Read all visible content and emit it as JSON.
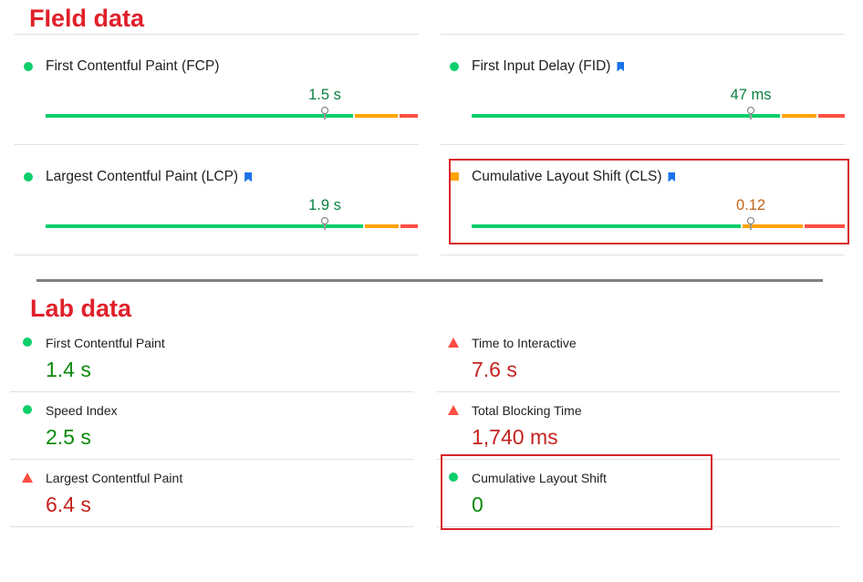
{
  "field_data": {
    "title": "FIeld data",
    "metrics": [
      {
        "label": "First Contentful Paint (FCP)",
        "value": "1.5 s",
        "status": "good",
        "bookmark": false
      },
      {
        "label": "First Input Delay (FID)",
        "value": "47 ms",
        "status": "good",
        "bookmark": true
      },
      {
        "label": "Largest Contentful Paint (LCP)",
        "value": "1.9 s",
        "status": "good",
        "bookmark": true
      },
      {
        "label": "Cumulative Layout Shift (CLS)",
        "value": "0.12",
        "status": "average",
        "bookmark": true
      }
    ]
  },
  "lab_data": {
    "title": "Lab data",
    "metrics": [
      {
        "label": "First Contentful Paint",
        "value": "1.4 s",
        "status": "good"
      },
      {
        "label": "Time to Interactive",
        "value": "7.6 s",
        "status": "poor"
      },
      {
        "label": "Speed Index",
        "value": "2.5 s",
        "status": "good"
      },
      {
        "label": "Total Blocking Time",
        "value": "1,740 ms",
        "status": "poor"
      },
      {
        "label": "Largest Contentful Paint",
        "value": "6.4 s",
        "status": "poor"
      },
      {
        "label": "Cumulative Layout Shift",
        "value": "0",
        "status": "good"
      }
    ]
  },
  "colors": {
    "good": "#0cce6b",
    "average": "#ffa400",
    "poor": "#ff4e42",
    "annotation": "#d9262b",
    "bookmark": "#1a73e8"
  },
  "icons": {
    "good": "green-circle-icon",
    "average": "orange-square-icon",
    "poor": "red-triangle-icon",
    "bookmark": "bookmark-icon"
  }
}
